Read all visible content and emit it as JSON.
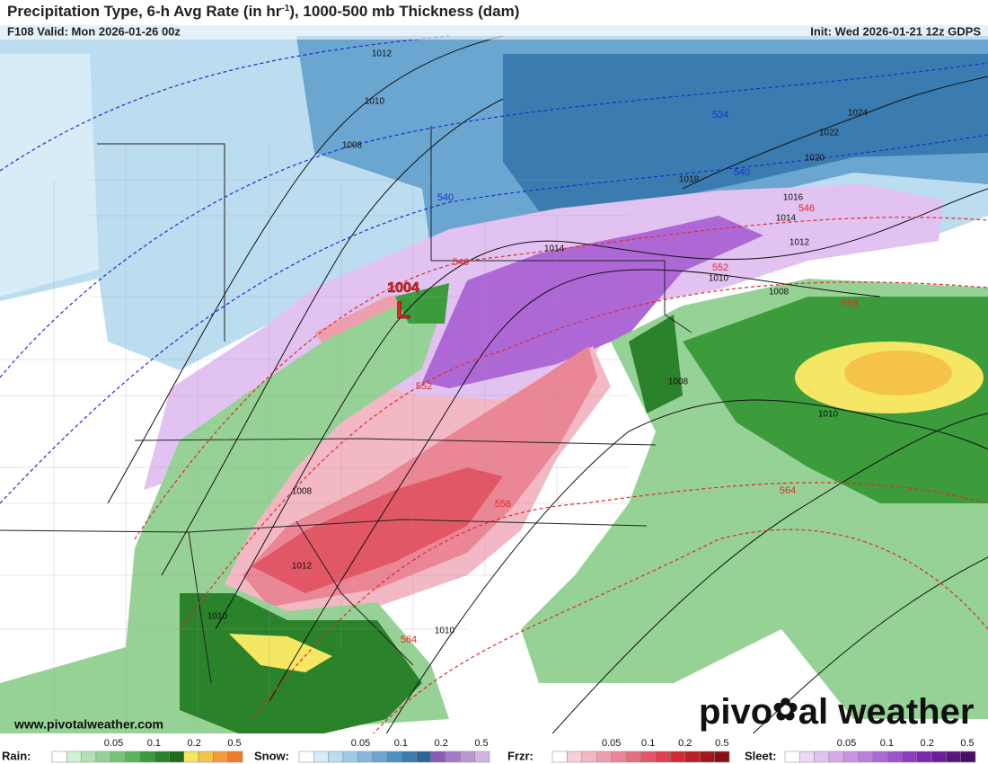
{
  "header": {
    "title_parts": [
      "Precipitation Type, 6-h Avg Rate (in hr",
      "-1",
      "), 1000-500 mb Thickness (dam)"
    ],
    "valid": "F108 Valid: Mon 2026-01-26 00z",
    "init": "Init: Wed 2026-01-21 12z GDPS"
  },
  "map": {
    "low": {
      "pressure": "1004",
      "symbol": "L"
    },
    "isobar_labels": [
      "1012",
      "1010",
      "1008",
      "1024",
      "1022",
      "1020",
      "1018",
      "1016",
      "1014",
      "1014",
      "1012",
      "1010",
      "1008",
      "1008",
      "1010",
      "1008",
      "1012",
      "1010",
      "1010"
    ],
    "cold_thickness_labels": [
      "534",
      "540",
      "540"
    ],
    "warm_thickness_labels": [
      "546",
      "546",
      "552",
      "552",
      "558",
      "558",
      "564",
      "564"
    ]
  },
  "watermark": {
    "url": "www.pivotalweather.com",
    "logo_left": "pivo",
    "logo_right": "al weather"
  },
  "legend": [
    {
      "label": "Rain:",
      "colors": [
        "#ffffff",
        "#d2f0d2",
        "#b4e1b4",
        "#96d296",
        "#78c378",
        "#5ab45a",
        "#3c9c3c",
        "#2a822a",
        "#1e6b1e",
        "#f5e663",
        "#f5c24a",
        "#f29c3c",
        "#f07a2d"
      ],
      "ticks": [
        "0.05",
        "0.1",
        "0.2",
        "0.5"
      ]
    },
    {
      "label": "Snow:",
      "colors": [
        "#ffffff",
        "#d8ecf8",
        "#bcdcf0",
        "#a0cbe6",
        "#86b9dc",
        "#6ba6d0",
        "#4f91c2",
        "#3a7cb0",
        "#2a669a",
        "#8b5cb6",
        "#a27bc4",
        "#b997d3",
        "#d2b6e2"
      ],
      "ticks": [
        "0.05",
        "0.1",
        "0.2",
        "0.5"
      ]
    },
    {
      "label": "Frzr:",
      "colors": [
        "#ffffff",
        "#f5d0d8",
        "#f2b8c4",
        "#ee9fae",
        "#ea8696",
        "#e66e7e",
        "#e25766",
        "#de404d",
        "#d02b36",
        "#b82026",
        "#a0181c",
        "#881013"
      ],
      "ticks": [
        "0.05",
        "0.1",
        "0.2",
        "0.5"
      ]
    },
    {
      "label": "Sleet:",
      "colors": [
        "#ffffff",
        "#eed8f5",
        "#e2c2f0",
        "#d6abea",
        "#c994e4",
        "#bc7edd",
        "#ae68d5",
        "#9e52cc",
        "#8c3cc0",
        "#7a2ab0",
        "#6a1e98",
        "#5a1580",
        "#4a0e66"
      ],
      "ticks": [
        "0.05",
        "0.1",
        "0.2",
        "0.5"
      ]
    }
  ]
}
